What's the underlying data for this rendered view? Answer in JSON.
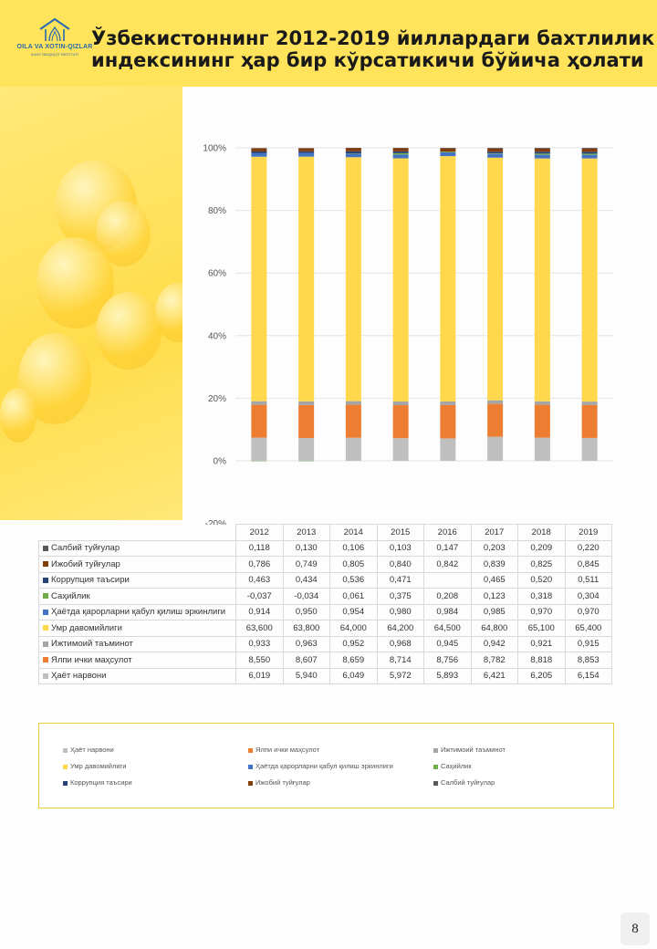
{
  "header": {
    "title_line1": "Ўзбекистоннинг 2012-2019 йиллардаги бахтлилик",
    "title_line2": "индексининг ҳар бир кўрсатикичи бўйича ҳолати",
    "logo_name": "OILA VA XOTIN-QIZLAR",
    "logo_sub": "ILMIY-TADQIQOT INSTITUTI"
  },
  "page_number": "8",
  "colors": {
    "header": "#ffe35a",
    "accent": "#ffdc4a"
  },
  "chart_data": {
    "type": "bar",
    "stacked": "percent",
    "categories": [
      "2012",
      "2013",
      "2014",
      "2015",
      "2016",
      "2017",
      "2018",
      "2019"
    ],
    "ylim": [
      -0.2,
      1.0
    ],
    "yticks": [
      "-20%",
      "0%",
      "20%",
      "40%",
      "60%",
      "80%",
      "100%"
    ],
    "grid": true,
    "legend_position": "bottom",
    "series": [
      {
        "name": "Ҳаёт нарвони",
        "color": "#bfbfbf",
        "values": [
          6.019,
          5.94,
          6.049,
          5.972,
          5.893,
          6.421,
          6.205,
          6.154
        ],
        "labels": [
          "6,019",
          "5,940",
          "6,049",
          "5,972",
          "5,893",
          "6,421",
          "6,205",
          "6,154"
        ]
      },
      {
        "name": "Ялпи ички маҳсулот",
        "color": "#ed7d31",
        "values": [
          8.55,
          8.607,
          8.659,
          8.714,
          8.756,
          8.782,
          8.818,
          8.853
        ],
        "labels": [
          "8,550",
          "8,607",
          "8,659",
          "8,714",
          "8,756",
          "8,782",
          "8,818",
          "8,853"
        ]
      },
      {
        "name": "Ижтимоий таъминот",
        "color": "#a5a5a5",
        "values": [
          0.933,
          0.963,
          0.952,
          0.968,
          0.945,
          0.942,
          0.921,
          0.915
        ],
        "labels": [
          "0,933",
          "0,963",
          "0,952",
          "0,968",
          "0,945",
          "0,942",
          "0,921",
          "0,915"
        ]
      },
      {
        "name": "Умр давомийлиги",
        "color": "#ffd84d",
        "values": [
          63.6,
          63.8,
          64.0,
          64.2,
          64.5,
          64.8,
          65.1,
          65.4
        ],
        "labels": [
          "63,600",
          "63,800",
          "64,000",
          "64,200",
          "64,500",
          "64,800",
          "65,100",
          "65,400"
        ]
      },
      {
        "name": "Ҳаётда қарорларни қабул қилиш эркинлиги",
        "color": "#4472c4",
        "values": [
          0.914,
          0.95,
          0.954,
          0.98,
          0.984,
          0.985,
          0.97,
          0.97
        ],
        "labels": [
          "0,914",
          "0,950",
          "0,954",
          "0,980",
          "0,984",
          "0,985",
          "0,970",
          "0,970"
        ]
      },
      {
        "name": "Саҳийлик",
        "color": "#70ad47",
        "values": [
          -0.037,
          -0.034,
          0.061,
          0.375,
          0.208,
          0.123,
          0.318,
          0.304
        ],
        "labels": [
          "-0,037",
          "-0,034",
          "0,061",
          "0,375",
          "0,208",
          "0,123",
          "0,318",
          "0,304"
        ]
      },
      {
        "name": "Коррупция таъсири",
        "color": "#264478",
        "values": [
          0.463,
          0.434,
          0.536,
          0.471,
          null,
          0.465,
          0.52,
          0.511
        ],
        "labels": [
          "0,463",
          "0,434",
          "0,536",
          "0,471",
          "",
          "0,465",
          "0,520",
          "0,511"
        ]
      },
      {
        "name": "Ижобий туйғулар",
        "color": "#843c0c",
        "values": [
          0.786,
          0.749,
          0.805,
          0.84,
          0.842,
          0.839,
          0.825,
          0.845
        ],
        "labels": [
          "0,786",
          "0,749",
          "0,805",
          "0,840",
          "0,842",
          "0,839",
          "0,825",
          "0,845"
        ]
      },
      {
        "name": "Салбий туйғулар",
        "color": "#595959",
        "values": [
          0.118,
          0.13,
          0.106,
          0.103,
          0.147,
          0.203,
          0.209,
          0.22
        ],
        "labels": [
          "0,118",
          "0,130",
          "0,106",
          "0,103",
          "0,147",
          "0,203",
          "0,209",
          "0,220"
        ]
      }
    ]
  },
  "table": {
    "row_order": [
      8,
      7,
      6,
      5,
      4,
      3,
      2,
      1,
      0
    ],
    "row_labels": [
      "Салбий туйғулар",
      "Ижобий туйғулар",
      "Коррупция таъсири",
      "Саҳийлик",
      "Ҳаётда қарорларни қабул қилиш эркинлиги",
      "Умр давомийлиги",
      "Ижтимоий таъминот",
      "Ялпи ички маҳсулот",
      "Ҳаёт нарвони"
    ]
  },
  "legend": {
    "items": [
      {
        "label": "Ҳаёт нарвони",
        "color": "#bfbfbf"
      },
      {
        "label": "Ялпи ички маҳсулот",
        "color": "#ed7d31"
      },
      {
        "label": "Ижтимоий таъминот",
        "color": "#a5a5a5"
      },
      {
        "label": "Умр давомийлиги",
        "color": "#ffd84d"
      },
      {
        "label": "Ҳаётда қарорларни қабул қилиш эркинлиги",
        "color": "#4472c4"
      },
      {
        "label": "Саҳийлик",
        "color": "#70ad47"
      },
      {
        "label": "Коррупция таъсири",
        "color": "#264478"
      },
      {
        "label": "Ижобий туйғулар",
        "color": "#843c0c"
      },
      {
        "label": "Салбий туйғулар",
        "color": "#595959"
      }
    ]
  }
}
